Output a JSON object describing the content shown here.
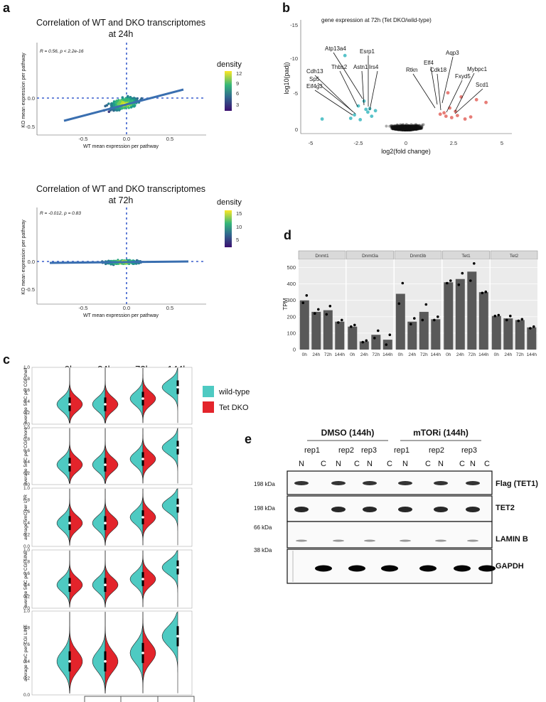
{
  "panel_letters": {
    "a": "a",
    "b": "b",
    "c": "c",
    "d": "d",
    "e": "e"
  },
  "panel_a": {
    "top": {
      "title_line1": "Correlation of WT and DKO transcriptomes",
      "title_line2": "at 24h",
      "stat": "R = 0.56, p < 2.2e-16",
      "xlabel": "WT mean expression per pathway",
      "ylabel": "KO mean expression per pathway",
      "x_ticks": [
        "-0.5",
        "0.0",
        "0.5"
      ],
      "y_ticks": [
        "0.0",
        "-0.5"
      ],
      "legend_title": "density",
      "legend_ticks": [
        "12",
        "9",
        "6",
        "3"
      ]
    },
    "bottom": {
      "title_line1": "Correlation of WT and DKO transcriptomes",
      "title_line2": "at 72h",
      "stat": "R = -0.012, p = 0.83",
      "xlabel": "WT mean expression per pathway",
      "ylabel": "KO mean expression per pathway",
      "x_ticks": [
        "-0.5",
        "0.0",
        "0.5"
      ],
      "y_ticks": [
        "0.0",
        "-0.5"
      ],
      "legend_title": "density",
      "legend_ticks": [
        "15",
        "10",
        "5"
      ]
    }
  },
  "panel_b": {
    "title": "gene expression at 72h (Tet DKO/wild-type)",
    "xlabel": "log2(fold change)",
    "ylabel": "log10(padj)",
    "x_ticks": [
      "-5",
      "-2.5",
      "0",
      "2.5",
      "5"
    ],
    "y_ticks": [
      "-15",
      "-10",
      "-5",
      "0"
    ],
    "genes_down": [
      "Atp13a4",
      "Esrp1",
      "Thbs2",
      "Astn1",
      "Cdh13",
      "Irs4",
      "Sp5",
      "Eif4g3"
    ],
    "genes_up": [
      "Aqp3",
      "Elf4",
      "Rtkn",
      "Cdk18",
      "Mybpc1",
      "Fxyd5",
      "Scd1"
    ]
  },
  "panel_c": {
    "timepoints": [
      "0h",
      "24h",
      "72h",
      "144h"
    ],
    "ylabels": [
      "average 5mC per CGI shelf",
      "average 5mC per CGI shore",
      "average 5mC per LTR",
      "average 5mC per CGI SINE",
      "average 5mC per CGI LINE"
    ],
    "y_ticks": [
      "1.0",
      "0.8",
      "0.6",
      "0.4",
      "0.2",
      "0.0"
    ],
    "legend": [
      {
        "label": "wild-type",
        "color": "#4ecac2"
      },
      {
        "label": "Tet DKO",
        "color": "#e3242b"
      }
    ]
  },
  "panel_d": {
    "ylabel": "TPM",
    "y_ticks": [
      "500",
      "400",
      "300",
      "200",
      "100",
      "0"
    ],
    "categories": [
      "0h",
      "24h",
      "72h",
      "144h"
    ]
  },
  "chart_data": {
    "type": "bar",
    "title": "",
    "ylabel": "TPM",
    "ylim": [
      0,
      550
    ],
    "categories": [
      "0h",
      "24h",
      "72h",
      "144h"
    ],
    "facets": [
      {
        "name": "Dnmt1",
        "values": [
          300,
          230,
          240,
          170
        ],
        "points": [
          [
            285,
            330
          ],
          [
            220,
            245
          ],
          [
            215,
            265
          ],
          [
            165,
            180
          ]
        ]
      },
      {
        "name": "Dnmt3a",
        "values": [
          140,
          50,
          90,
          60
        ],
        "points": [
          [
            140,
            150
          ],
          [
            45,
            55
          ],
          [
            70,
            115
          ],
          [
            30,
            90
          ]
        ]
      },
      {
        "name": "Dnmt3b",
        "values": [
          340,
          170,
          230,
          185
        ],
        "points": [
          [
            280,
            405
          ],
          [
            155,
            190
          ],
          [
            180,
            275
          ],
          [
            180,
            200
          ]
        ]
      },
      {
        "name": "Tet1",
        "values": [
          410,
          430,
          475,
          350
        ],
        "points": [
          [
            405,
            420
          ],
          [
            395,
            465
          ],
          [
            420,
            525
          ],
          [
            345,
            352
          ]
        ]
      },
      {
        "name": "Tet2",
        "values": [
          205,
          190,
          180,
          135
        ],
        "points": [
          [
            205,
            210
          ],
          [
            180,
            205
          ],
          [
            175,
            185
          ],
          [
            130,
            140
          ]
        ]
      }
    ]
  },
  "panel_e": {
    "groups": [
      "DMSO (144h)",
      "mTORi (144h)"
    ],
    "reps": [
      "rep1",
      "rep2",
      "rep3",
      "rep1",
      "rep2",
      "rep3"
    ],
    "lanes": [
      "N",
      "C",
      "N",
      "C",
      "N",
      "C",
      "N",
      "C",
      "N",
      "C",
      "N",
      "C"
    ],
    "kda": [
      "198 kDa",
      "198 kDa",
      "66 kDa",
      "38 kDa"
    ],
    "bands": [
      "Flag (TET1)",
      "TET2",
      "LAMIN B",
      "GAPDH"
    ]
  }
}
